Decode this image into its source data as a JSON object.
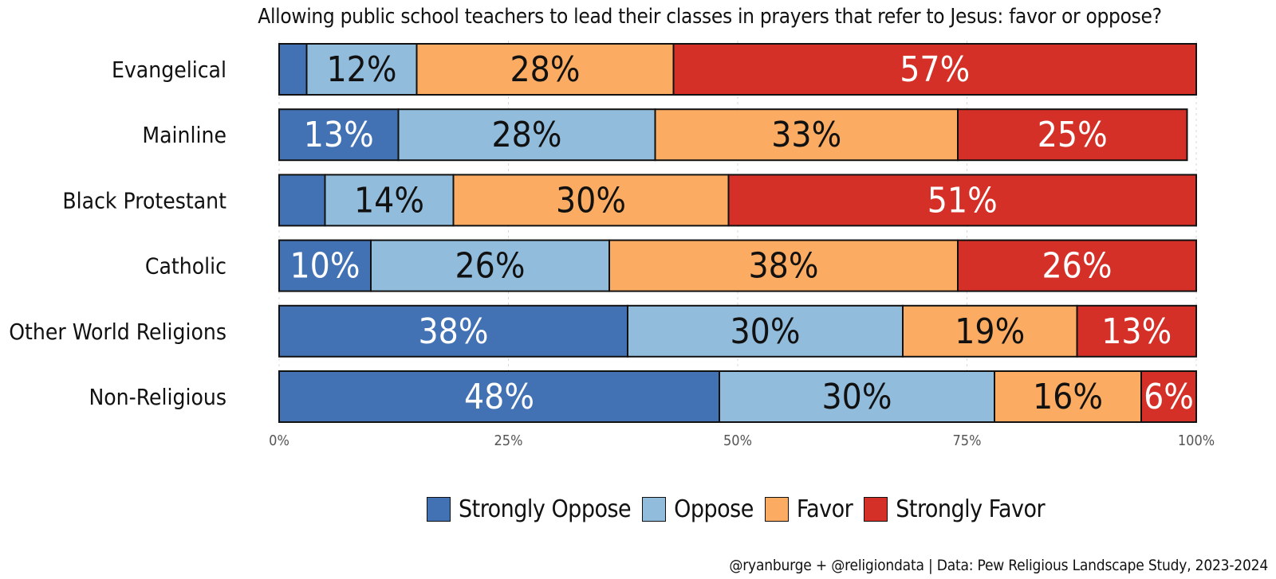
{
  "chart_data": {
    "type": "bar",
    "orientation": "horizontal",
    "stacked": true,
    "title": "Allowing public school teachers to lead their classes in prayers that refer to Jesus: favor or oppose?",
    "caption": "@ryanburge + @religiondata | Data: Pew Religious Landscape Study, 2023-2024",
    "categories": [
      "Evangelical",
      "Mainline",
      "Black Protestant",
      "Catholic",
      "Other World Religions",
      "Non-Religious"
    ],
    "series": [
      {
        "name": "Strongly Oppose",
        "color": "#4372b4",
        "label_color": "#ffffff",
        "values": [
          3,
          13,
          5,
          10,
          38,
          48
        ]
      },
      {
        "name": "Oppose",
        "color": "#92bcdb",
        "label_color": "#111111",
        "values": [
          12,
          28,
          14,
          26,
          30,
          30
        ]
      },
      {
        "name": "Favor",
        "color": "#fbac62",
        "label_color": "#111111",
        "values": [
          28,
          33,
          30,
          38,
          19,
          16
        ]
      },
      {
        "name": "Strongly Favor",
        "color": "#d53027",
        "label_color": "#ffffff",
        "values": [
          57,
          25,
          51,
          26,
          13,
          6
        ]
      }
    ],
    "data_labels": [
      [
        "",
        "12%",
        "28%",
        "57%"
      ],
      [
        "13%",
        "28%",
        "33%",
        "25%"
      ],
      [
        "",
        "14%",
        "30%",
        "51%"
      ],
      [
        "10%",
        "26%",
        "38%",
        "26%"
      ],
      [
        "38%",
        "30%",
        "19%",
        "13%"
      ],
      [
        "48%",
        "30%",
        "16%",
        "6%"
      ]
    ],
    "xlim": [
      0,
      100
    ],
    "x_ticks": [
      0,
      25,
      50,
      75,
      100
    ],
    "x_tick_labels": [
      "0%",
      "25%",
      "50%",
      "75%",
      "100%"
    ],
    "xlabel": "",
    "ylabel": "",
    "grid": "vertical-dashed",
    "legend_position": "bottom"
  }
}
